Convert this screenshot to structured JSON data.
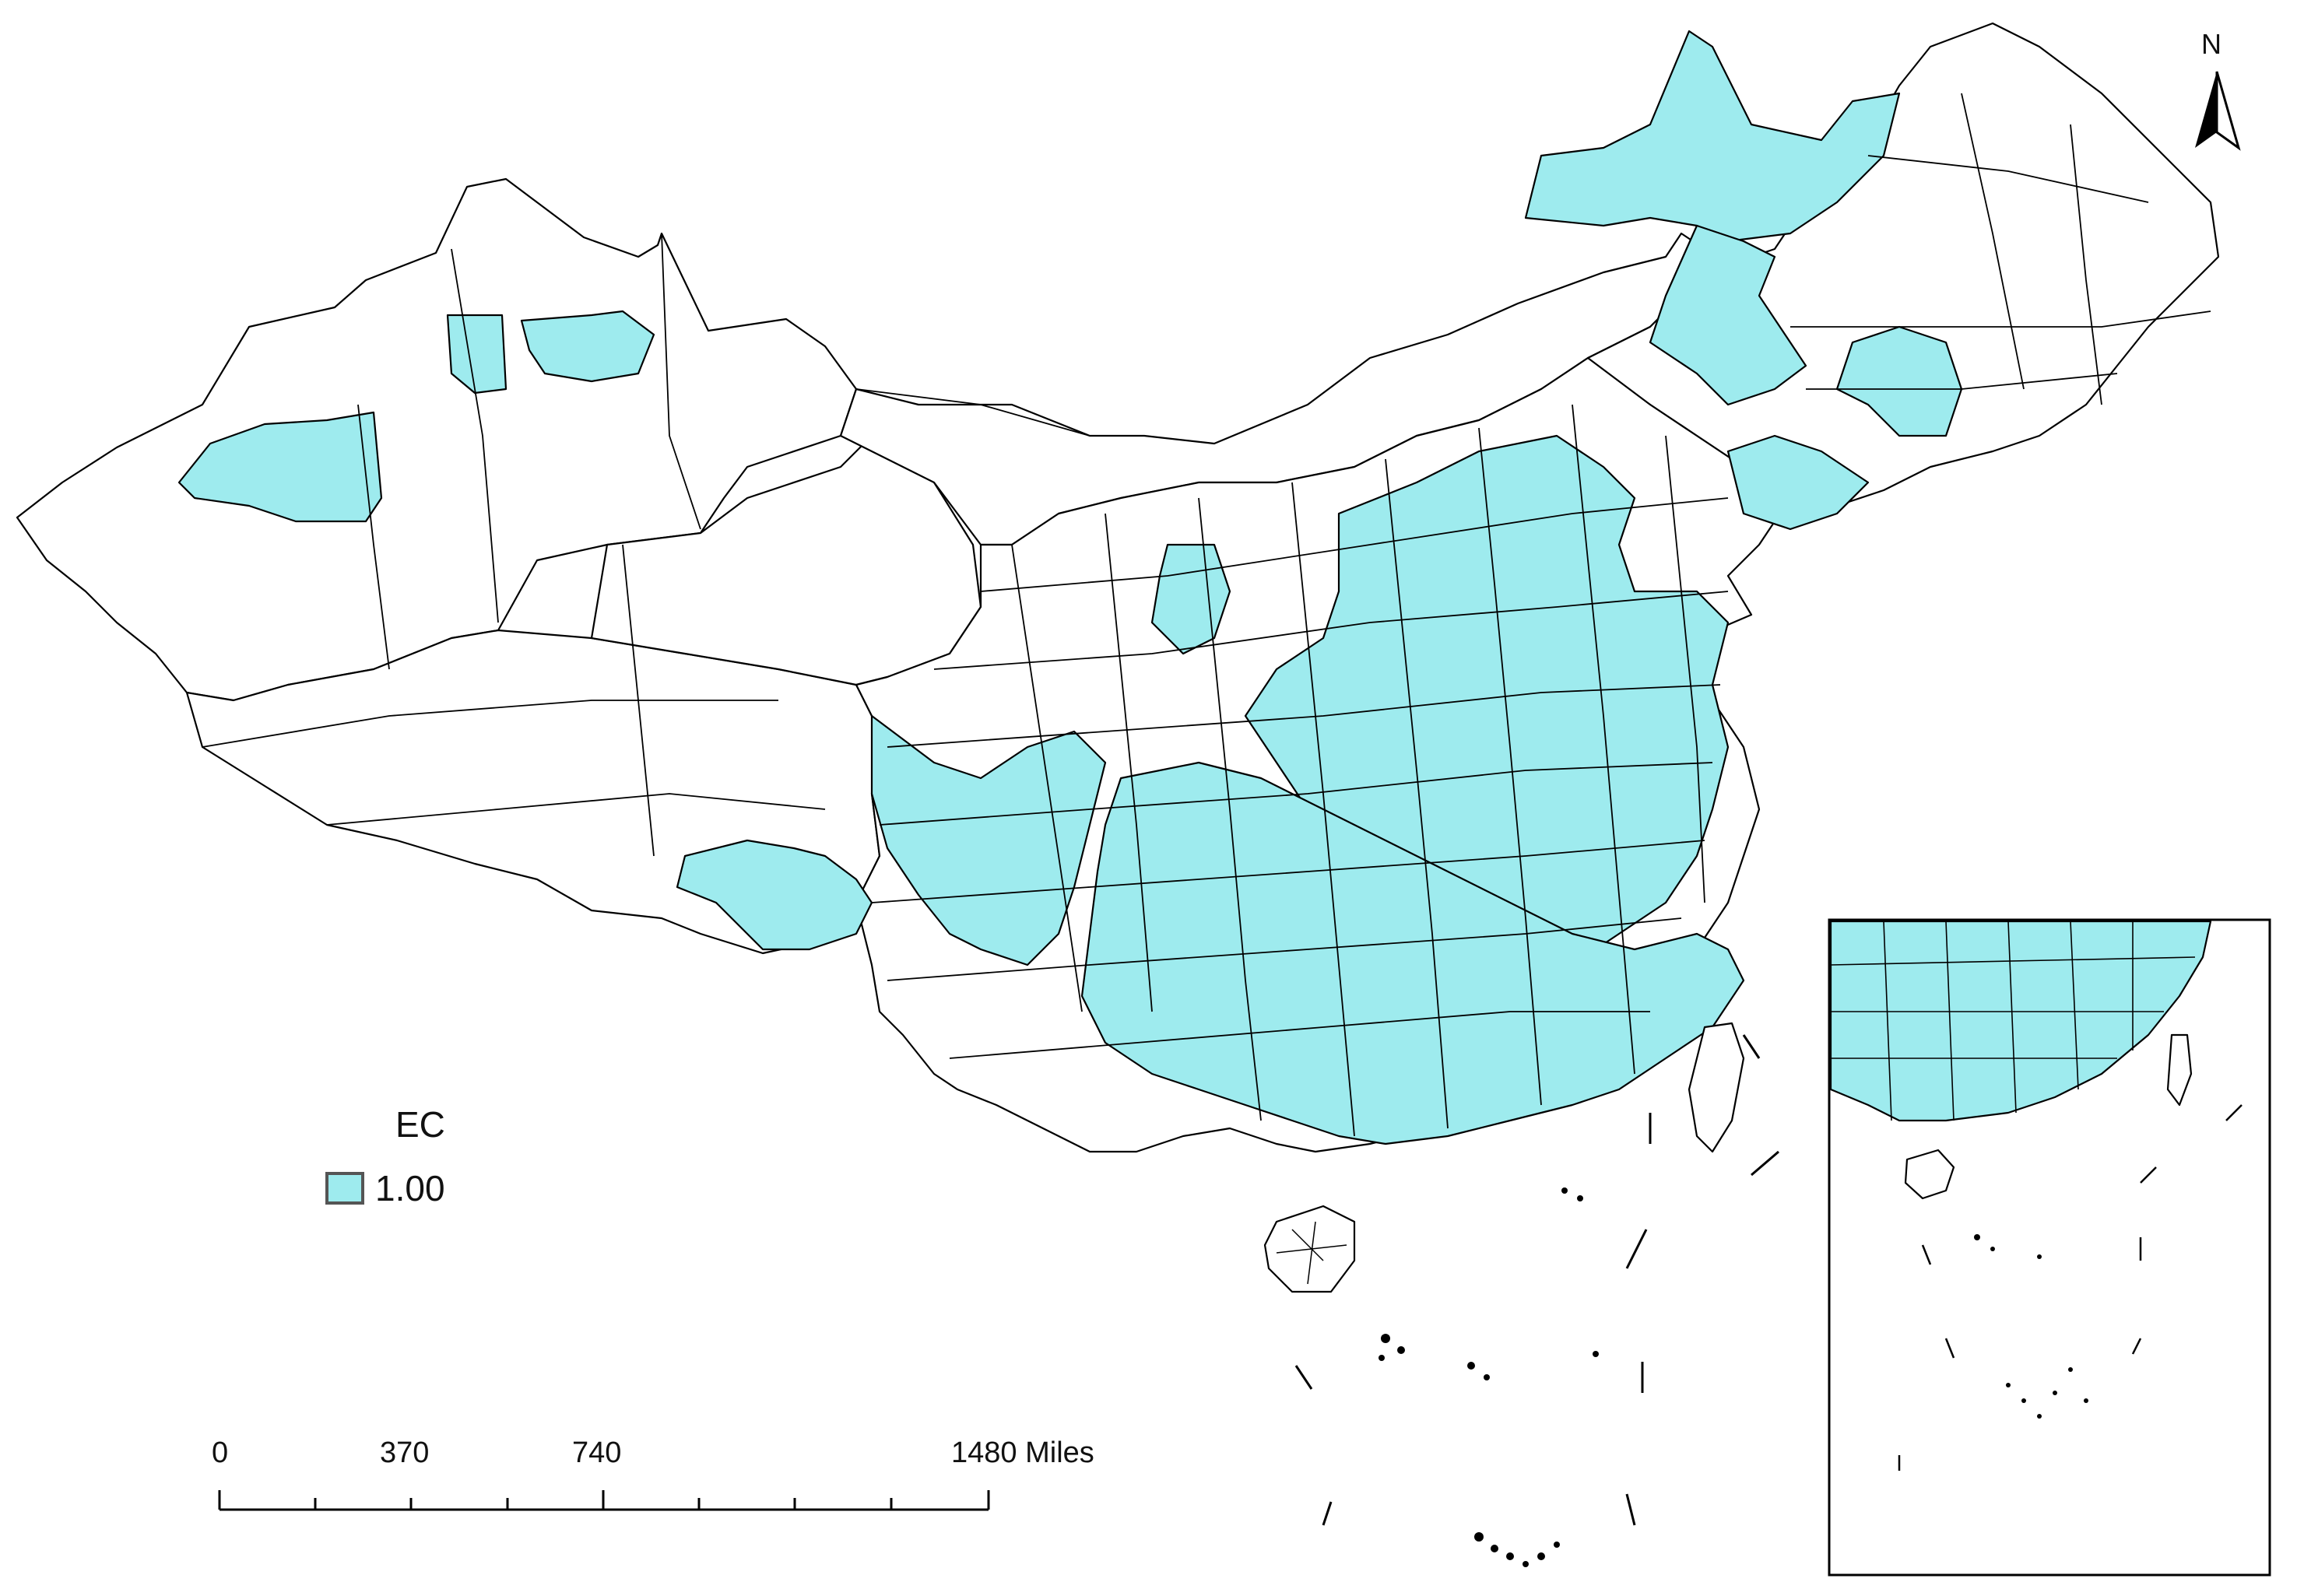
{
  "map": {
    "north_label": "N",
    "legend": {
      "title": "EC",
      "items": [
        {
          "label": "1.00",
          "color": "#9eebee"
        }
      ]
    },
    "scale_bar": {
      "ticks": [
        "0",
        "370",
        "740",
        "1480 Miles"
      ]
    },
    "colors": {
      "filled": "#9eebee",
      "empty": "#ffffff",
      "border": "#000000"
    }
  }
}
